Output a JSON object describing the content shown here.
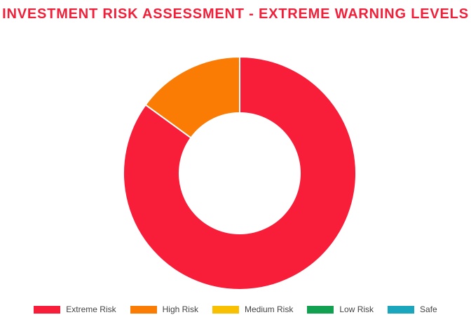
{
  "chart_data": {
    "type": "pie",
    "variant": "doughnut",
    "title": "INVESTMENT RISK ASSESSMENT - EXTREME WARNING LEVELS",
    "categories": [
      "Extreme Risk",
      "High Risk",
      "Medium Risk",
      "Low Risk",
      "Safe"
    ],
    "values": [
      85,
      15,
      0,
      0,
      0
    ],
    "colors": [
      "#f81e3a",
      "#fb7c04",
      "#f8c000",
      "#12a150",
      "#1aa7be"
    ],
    "legend": "bottom",
    "grid": false
  }
}
